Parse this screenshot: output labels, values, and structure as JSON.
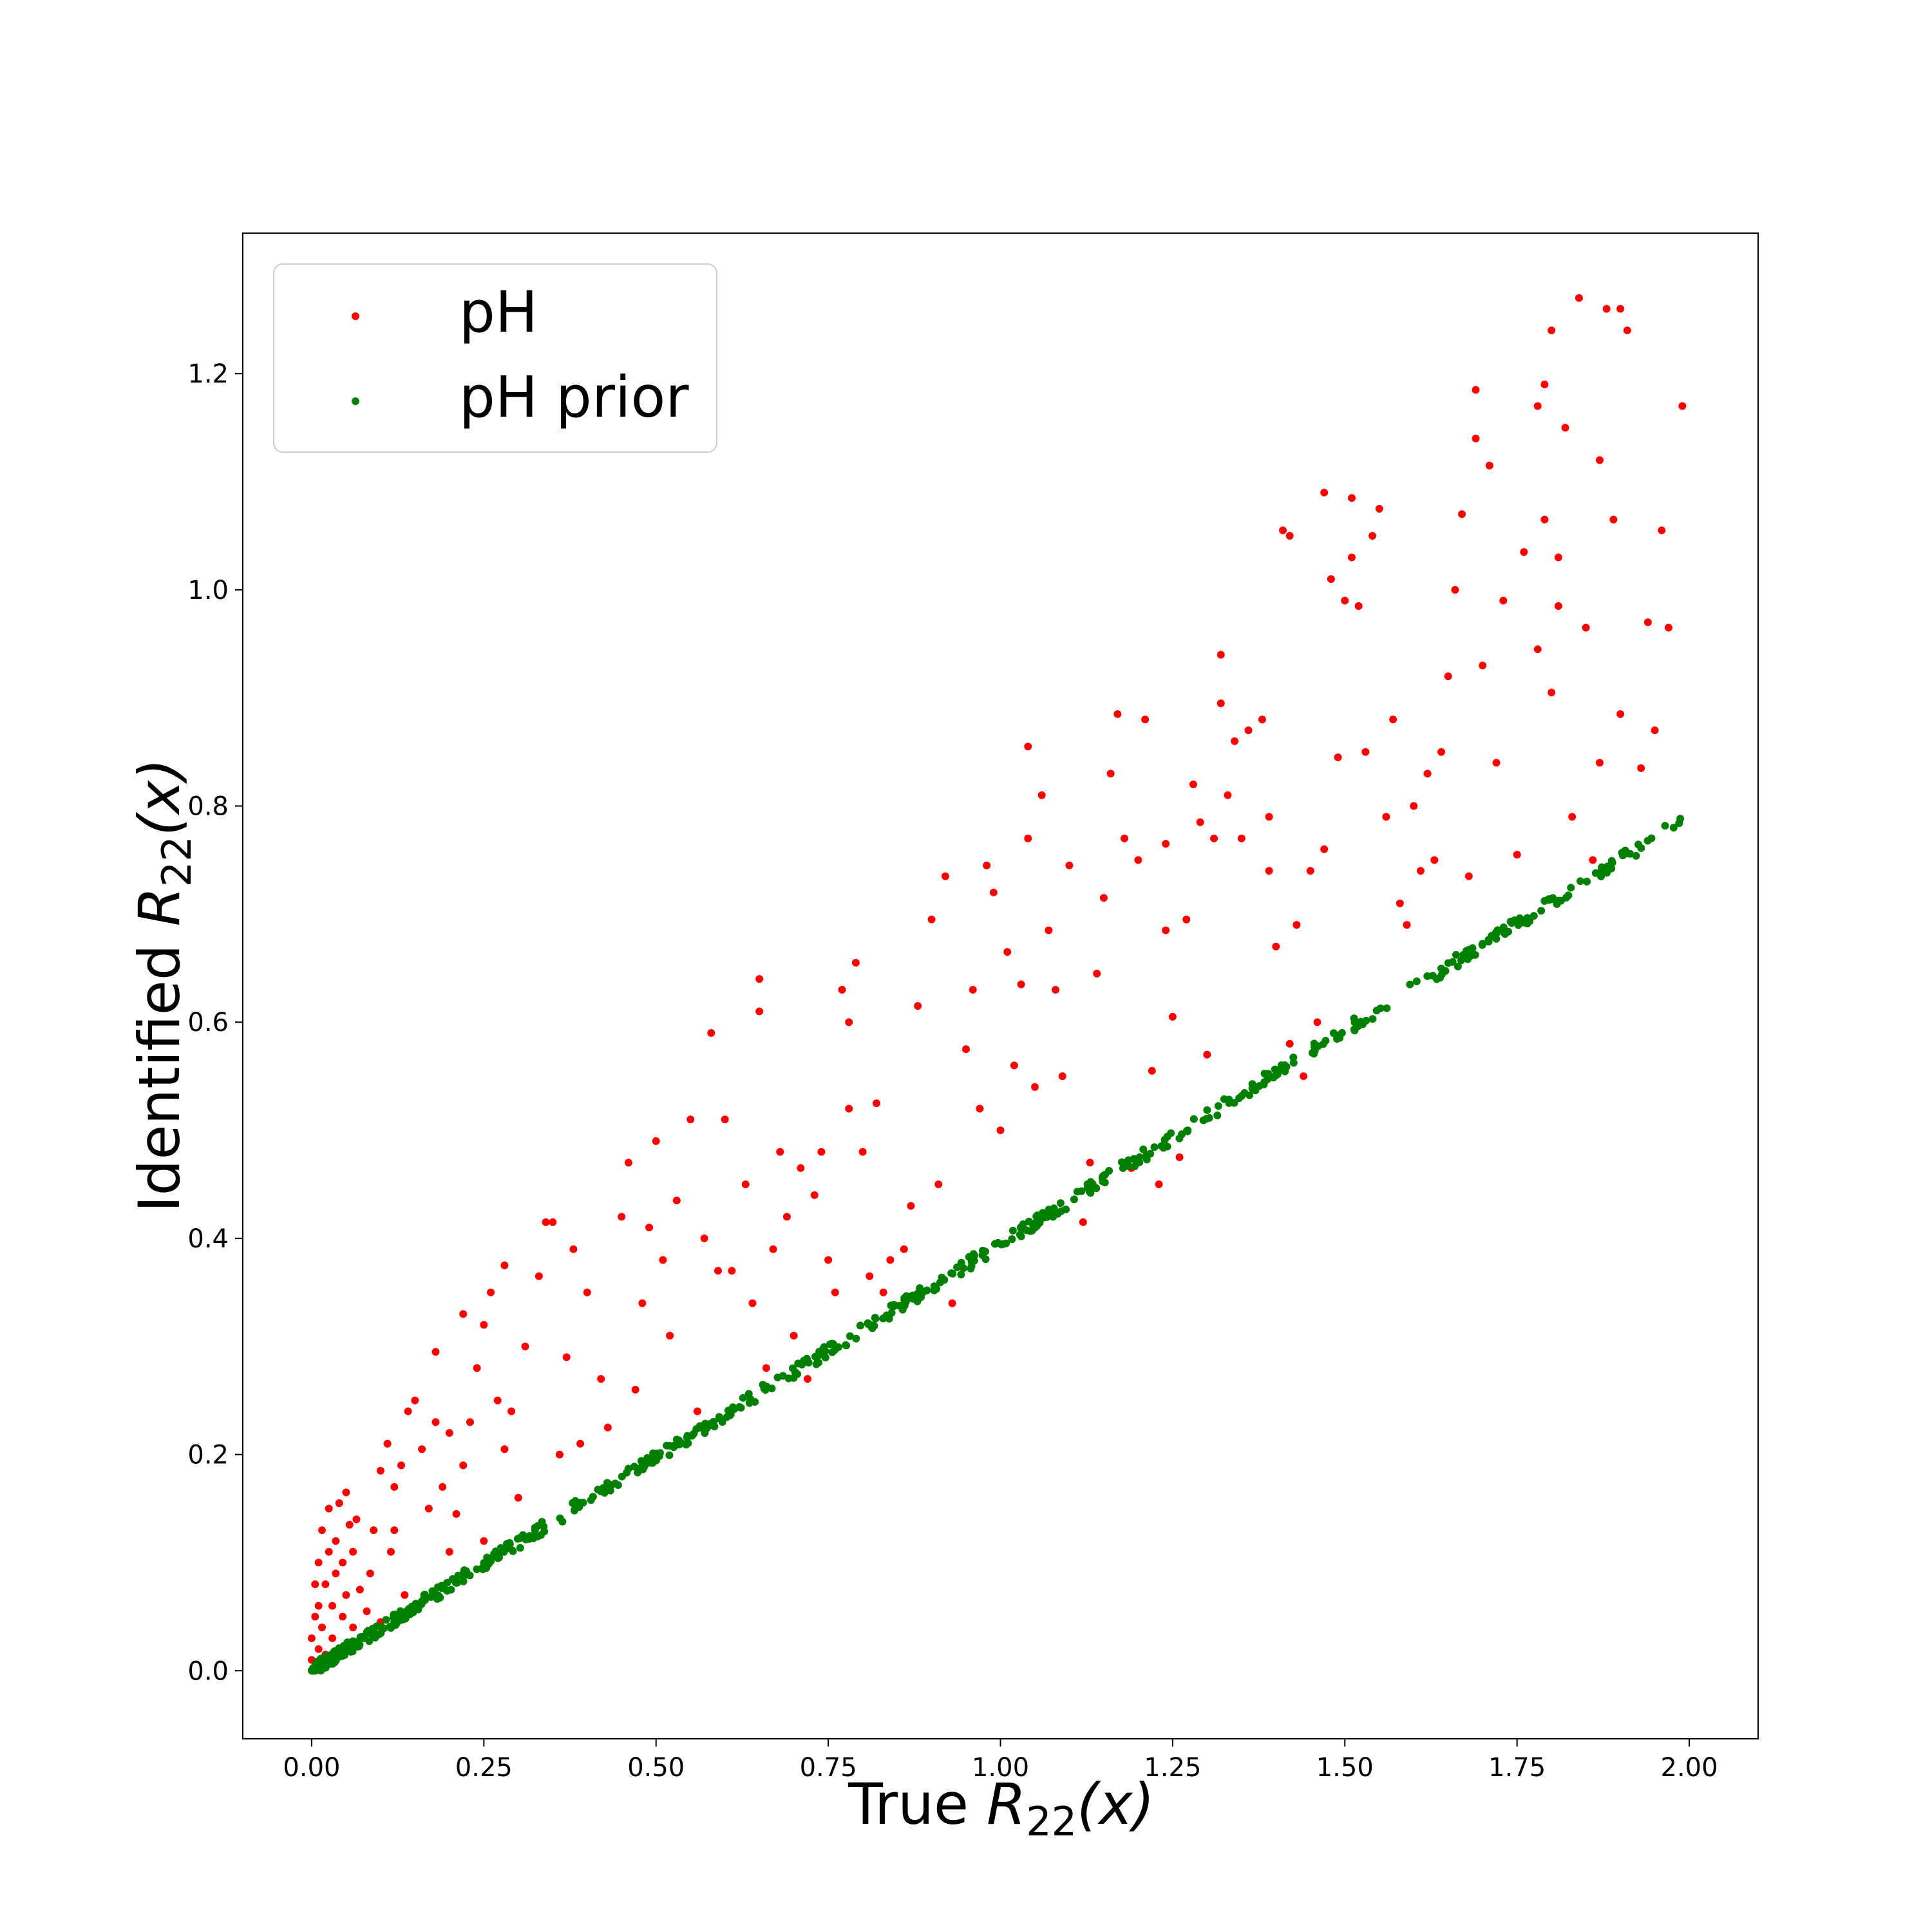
{
  "colors": {
    "ph": "#ff0000",
    "ph_prior": "#008000",
    "axes": "#000000",
    "legend_border": "#cccccc"
  },
  "chart_data": {
    "type": "scatter",
    "title": "",
    "xlabel": {
      "prefix": "True",
      "symbol": "R",
      "subscript": "22",
      "arg": "(x)"
    },
    "ylabel": {
      "prefix": "Identified",
      "symbol": "R",
      "subscript": "22",
      "arg": "(x)"
    },
    "xlim": [
      -0.1,
      2.1
    ],
    "ylim": [
      -0.063,
      1.33
    ],
    "xticks": [
      0.0,
      0.25,
      0.5,
      0.75,
      1.0,
      1.25,
      1.5,
      1.75,
      2.0
    ],
    "xtick_labels": [
      "0.00",
      "0.25",
      "0.50",
      "0.75",
      "1.00",
      "1.25",
      "1.50",
      "1.75",
      "2.00"
    ],
    "yticks": [
      0.0,
      0.2,
      0.4,
      0.6,
      0.8,
      1.0,
      1.2
    ],
    "ytick_labels": [
      "0.0",
      "0.2",
      "0.4",
      "0.6",
      "0.8",
      "1.0",
      "1.2"
    ],
    "grid": false,
    "legend_placement": "top-left",
    "series": [
      {
        "name": "pH",
        "color": "#ff0000",
        "points": [
          [
            0.0,
            0.01
          ],
          [
            0.0,
            0.03
          ],
          [
            0.005,
            0.05
          ],
          [
            0.005,
            0.08
          ],
          [
            0.01,
            0.02
          ],
          [
            0.01,
            0.06
          ],
          [
            0.01,
            0.1
          ],
          [
            0.015,
            0.04
          ],
          [
            0.015,
            0.13
          ],
          [
            0.02,
            0.015
          ],
          [
            0.02,
            0.08
          ],
          [
            0.025,
            0.11
          ],
          [
            0.025,
            0.15
          ],
          [
            0.03,
            0.03
          ],
          [
            0.03,
            0.06
          ],
          [
            0.035,
            0.09
          ],
          [
            0.035,
            0.12
          ],
          [
            0.04,
            0.02
          ],
          [
            0.04,
            0.155
          ],
          [
            0.045,
            0.05
          ],
          [
            0.045,
            0.1
          ],
          [
            0.05,
            0.165
          ],
          [
            0.05,
            0.07
          ],
          [
            0.055,
            0.135
          ],
          [
            0.06,
            0.04
          ],
          [
            0.06,
            0.11
          ],
          [
            0.065,
            0.14
          ],
          [
            0.07,
            0.075
          ],
          [
            0.08,
            0.055
          ],
          [
            0.085,
            0.09
          ],
          [
            0.09,
            0.13
          ],
          [
            0.1,
            0.045
          ],
          [
            0.1,
            0.185
          ],
          [
            0.11,
            0.21
          ],
          [
            0.115,
            0.11
          ],
          [
            0.12,
            0.17
          ],
          [
            0.12,
            0.13
          ],
          [
            0.13,
            0.19
          ],
          [
            0.135,
            0.07
          ],
          [
            0.14,
            0.24
          ],
          [
            0.15,
            0.25
          ],
          [
            0.16,
            0.205
          ],
          [
            0.17,
            0.15
          ],
          [
            0.18,
            0.23
          ],
          [
            0.18,
            0.295
          ],
          [
            0.19,
            0.17
          ],
          [
            0.2,
            0.22
          ],
          [
            0.2,
            0.11
          ],
          [
            0.21,
            0.145
          ],
          [
            0.22,
            0.19
          ],
          [
            0.22,
            0.33
          ],
          [
            0.23,
            0.23
          ],
          [
            0.24,
            0.28
          ],
          [
            0.25,
            0.32
          ],
          [
            0.25,
            0.12
          ],
          [
            0.26,
            0.35
          ],
          [
            0.27,
            0.25
          ],
          [
            0.28,
            0.375
          ],
          [
            0.28,
            0.205
          ],
          [
            0.29,
            0.24
          ],
          [
            0.3,
            0.16
          ],
          [
            0.31,
            0.3
          ],
          [
            0.33,
            0.365
          ],
          [
            0.34,
            0.415
          ],
          [
            0.35,
            0.415
          ],
          [
            0.36,
            0.2
          ],
          [
            0.37,
            0.29
          ],
          [
            0.38,
            0.39
          ],
          [
            0.39,
            0.21
          ],
          [
            0.4,
            0.35
          ],
          [
            0.42,
            0.27
          ],
          [
            0.43,
            0.225
          ],
          [
            0.45,
            0.42
          ],
          [
            0.46,
            0.47
          ],
          [
            0.47,
            0.26
          ],
          [
            0.48,
            0.34
          ],
          [
            0.49,
            0.41
          ],
          [
            0.5,
            0.49
          ],
          [
            0.51,
            0.38
          ],
          [
            0.52,
            0.31
          ],
          [
            0.53,
            0.435
          ],
          [
            0.55,
            0.51
          ],
          [
            0.56,
            0.24
          ],
          [
            0.57,
            0.4
          ],
          [
            0.58,
            0.59
          ],
          [
            0.59,
            0.37
          ],
          [
            0.6,
            0.51
          ],
          [
            0.61,
            0.37
          ],
          [
            0.63,
            0.45
          ],
          [
            0.64,
            0.34
          ],
          [
            0.65,
            0.64
          ],
          [
            0.65,
            0.61
          ],
          [
            0.66,
            0.28
          ],
          [
            0.67,
            0.39
          ],
          [
            0.68,
            0.48
          ],
          [
            0.69,
            0.42
          ],
          [
            0.7,
            0.31
          ],
          [
            0.71,
            0.465
          ],
          [
            0.72,
            0.27
          ],
          [
            0.73,
            0.44
          ],
          [
            0.74,
            0.48
          ],
          [
            0.75,
            0.38
          ],
          [
            0.76,
            0.35
          ],
          [
            0.77,
            0.63
          ],
          [
            0.78,
            0.52
          ],
          [
            0.78,
            0.6
          ],
          [
            0.79,
            0.655
          ],
          [
            0.8,
            0.48
          ],
          [
            0.81,
            0.365
          ],
          [
            0.82,
            0.525
          ],
          [
            0.83,
            0.35
          ],
          [
            0.84,
            0.38
          ],
          [
            0.86,
            0.39
          ],
          [
            0.87,
            0.43
          ],
          [
            0.88,
            0.615
          ],
          [
            0.9,
            0.695
          ],
          [
            0.91,
            0.45
          ],
          [
            0.92,
            0.735
          ],
          [
            0.93,
            0.34
          ],
          [
            0.95,
            0.575
          ],
          [
            0.96,
            0.63
          ],
          [
            0.97,
            0.52
          ],
          [
            0.98,
            0.745
          ],
          [
            0.99,
            0.72
          ],
          [
            1.0,
            0.5
          ],
          [
            1.01,
            0.665
          ],
          [
            1.02,
            0.56
          ],
          [
            1.03,
            0.635
          ],
          [
            1.04,
            0.77
          ],
          [
            1.04,
            0.855
          ],
          [
            1.05,
            0.54
          ],
          [
            1.06,
            0.81
          ],
          [
            1.07,
            0.685
          ],
          [
            1.08,
            0.63
          ],
          [
            1.09,
            0.55
          ],
          [
            1.1,
            0.745
          ],
          [
            1.12,
            0.415
          ],
          [
            1.13,
            0.47
          ],
          [
            1.14,
            0.645
          ],
          [
            1.15,
            0.715
          ],
          [
            1.16,
            0.83
          ],
          [
            1.17,
            0.885
          ],
          [
            1.18,
            0.77
          ],
          [
            1.19,
            0.465
          ],
          [
            1.2,
            0.75
          ],
          [
            1.21,
            0.88
          ],
          [
            1.22,
            0.555
          ],
          [
            1.23,
            0.45
          ],
          [
            1.24,
            0.765
          ],
          [
            1.24,
            0.685
          ],
          [
            1.25,
            0.605
          ],
          [
            1.26,
            0.475
          ],
          [
            1.27,
            0.695
          ],
          [
            1.28,
            0.82
          ],
          [
            1.29,
            0.785
          ],
          [
            1.3,
            0.57
          ],
          [
            1.31,
            0.77
          ],
          [
            1.32,
            0.94
          ],
          [
            1.32,
            0.895
          ],
          [
            1.33,
            0.81
          ],
          [
            1.34,
            0.86
          ],
          [
            1.35,
            0.77
          ],
          [
            1.36,
            0.87
          ],
          [
            1.38,
            0.88
          ],
          [
            1.39,
            0.74
          ],
          [
            1.39,
            0.79
          ],
          [
            1.4,
            0.67
          ],
          [
            1.41,
            1.055
          ],
          [
            1.42,
            1.05
          ],
          [
            1.42,
            0.58
          ],
          [
            1.43,
            0.69
          ],
          [
            1.44,
            0.55
          ],
          [
            1.45,
            0.74
          ],
          [
            1.46,
            0.6
          ],
          [
            1.47,
            1.09
          ],
          [
            1.47,
            0.76
          ],
          [
            1.48,
            1.01
          ],
          [
            1.49,
            0.845
          ],
          [
            1.5,
            0.99
          ],
          [
            1.51,
            1.085
          ],
          [
            1.51,
            1.03
          ],
          [
            1.52,
            0.985
          ],
          [
            1.53,
            0.85
          ],
          [
            1.54,
            1.05
          ],
          [
            1.55,
            1.075
          ],
          [
            1.56,
            0.79
          ],
          [
            1.57,
            0.88
          ],
          [
            1.58,
            0.71
          ],
          [
            1.59,
            0.69
          ],
          [
            1.6,
            0.8
          ],
          [
            1.61,
            0.74
          ],
          [
            1.62,
            0.83
          ],
          [
            1.63,
            0.75
          ],
          [
            1.64,
            0.85
          ],
          [
            1.65,
            0.92
          ],
          [
            1.66,
            1.0
          ],
          [
            1.67,
            1.07
          ],
          [
            1.68,
            0.735
          ],
          [
            1.69,
            1.14
          ],
          [
            1.69,
            1.185
          ],
          [
            1.7,
            0.93
          ],
          [
            1.71,
            1.115
          ],
          [
            1.72,
            0.84
          ],
          [
            1.73,
            0.99
          ],
          [
            1.75,
            0.755
          ],
          [
            1.76,
            1.035
          ],
          [
            1.78,
            1.17
          ],
          [
            1.78,
            0.945
          ],
          [
            1.79,
            1.19
          ],
          [
            1.79,
            1.065
          ],
          [
            1.8,
            1.24
          ],
          [
            1.8,
            0.905
          ],
          [
            1.81,
            1.03
          ],
          [
            1.81,
            0.985
          ],
          [
            1.82,
            1.15
          ],
          [
            1.83,
            0.79
          ],
          [
            1.84,
            1.27
          ],
          [
            1.85,
            0.965
          ],
          [
            1.86,
            0.75
          ],
          [
            1.87,
            1.12
          ],
          [
            1.87,
            0.84
          ],
          [
            1.88,
            1.26
          ],
          [
            1.89,
            1.065
          ],
          [
            1.9,
            1.26
          ],
          [
            1.9,
            0.885
          ],
          [
            1.91,
            1.24
          ],
          [
            1.93,
            0.835
          ],
          [
            1.94,
            0.97
          ],
          [
            1.95,
            0.87
          ],
          [
            1.96,
            1.055
          ],
          [
            1.97,
            0.965
          ],
          [
            1.99,
            1.17
          ]
        ]
      },
      {
        "name": "pH prior",
        "color": "#008000",
        "slope": 0.395,
        "noise": 0.006,
        "n_points": 650
      }
    ]
  },
  "legend": {
    "entries": [
      "pH",
      "pH prior"
    ]
  }
}
